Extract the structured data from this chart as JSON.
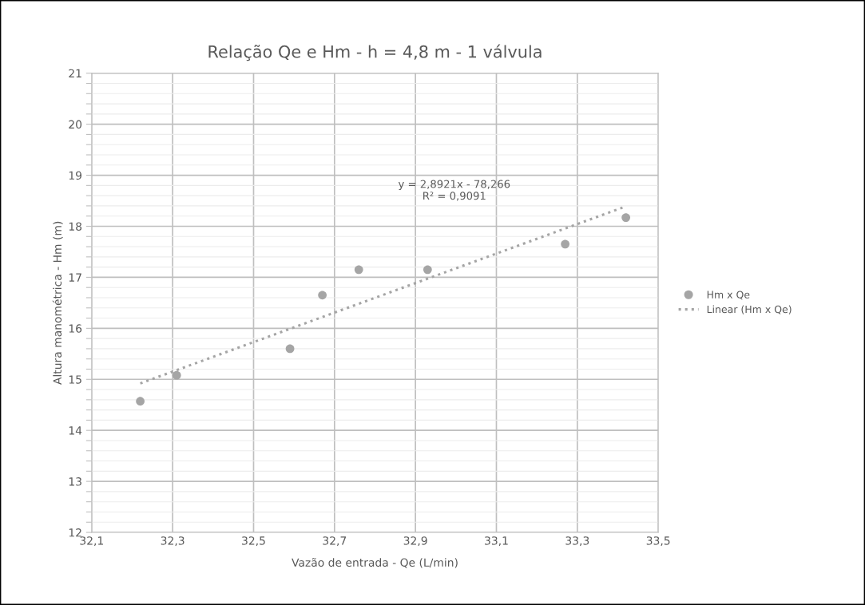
{
  "chart_data": {
    "type": "scatter",
    "title": "Relação Qe e Hm - h = 4,8 m - 1 válvula",
    "xlabel": "Vazão de entrada - Qe (L/min)",
    "ylabel": "Altura manométrica - Hm (m)",
    "series": [
      {
        "name": "Hm x Qe",
        "color": "#a5a5a5",
        "marker": "circle",
        "x": [
          32.22,
          32.31,
          32.59,
          32.67,
          32.76,
          32.93,
          33.27,
          33.42
        ],
        "values": [
          14.57,
          15.08,
          15.6,
          16.65,
          17.15,
          17.15,
          17.65,
          18.17
        ]
      },
      {
        "name": "Linear (Hm x Qe)",
        "type": "line",
        "color": "#a5a5a5",
        "line_style": "dotted",
        "marker": "none",
        "x": [
          32.22,
          33.42
        ],
        "values": [
          14.92,
          18.39
        ]
      }
    ],
    "annotations": [
      "y = 2,8921x - 78,266\nR² = 0,9091"
    ],
    "xlim": [
      32.1,
      33.5
    ],
    "xticks": [
      {
        "value": 32.1,
        "label": "32,1"
      },
      {
        "value": 32.3,
        "label": "32,3"
      },
      {
        "value": 32.5,
        "label": "32,5"
      },
      {
        "value": 32.7,
        "label": "32,7"
      },
      {
        "value": 32.9,
        "label": "32,9"
      },
      {
        "value": 33.1,
        "label": "33,1"
      },
      {
        "value": 33.3,
        "label": "33,3"
      },
      {
        "value": 33.5,
        "label": "33,5"
      }
    ],
    "ylim": [
      12,
      21
    ],
    "yticks": [
      12,
      {
        "value": 12.2,
        "label": null
      },
      {
        "value": 12.4,
        "label": null
      },
      {
        "value": 12.6,
        "label": null
      },
      {
        "value": 12.8,
        "label": null
      },
      13,
      {
        "value": 13.2,
        "label": null
      },
      {
        "value": 13.4,
        "label": null
      },
      {
        "value": 13.6,
        "label": null
      },
      {
        "value": 13.8,
        "label": null
      },
      14,
      {
        "value": 14.2,
        "label": null
      },
      {
        "value": 14.4,
        "label": null
      },
      {
        "value": 14.6,
        "label": null
      },
      {
        "value": 14.8,
        "label": null
      },
      15,
      {
        "value": 15.2,
        "label": null
      },
      {
        "value": 15.4,
        "label": null
      },
      {
        "value": 15.6,
        "label": null
      },
      {
        "value": 15.8,
        "label": null
      },
      16,
      {
        "value": 16.2,
        "label": null
      },
      {
        "value": 16.4,
        "label": null
      },
      {
        "value": 16.6,
        "label": null
      },
      {
        "value": 16.8,
        "label": null
      },
      17,
      {
        "value": 17.2,
        "label": null
      },
      {
        "value": 17.4,
        "label": null
      },
      {
        "value": 17.6,
        "label": null
      },
      {
        "value": 17.8,
        "label": null
      },
      18,
      {
        "value": 18.2,
        "label": null
      },
      {
        "value": 18.4,
        "label": null
      },
      {
        "value": 18.6,
        "label": null
      },
      {
        "value": 18.8,
        "label": null
      },
      19,
      {
        "value": 19.2,
        "label": null
      },
      {
        "value": 19.4,
        "label": null
      },
      {
        "value": 19.6,
        "label": null
      },
      {
        "value": 19.8,
        "label": null
      },
      20,
      {
        "value": 20.2,
        "label": null
      },
      {
        "value": 20.4,
        "label": null
      },
      {
        "value": 20.6,
        "label": null
      },
      {
        "value": 20.8,
        "label": null
      },
      21
    ],
    "grid": true,
    "legend": "right"
  }
}
